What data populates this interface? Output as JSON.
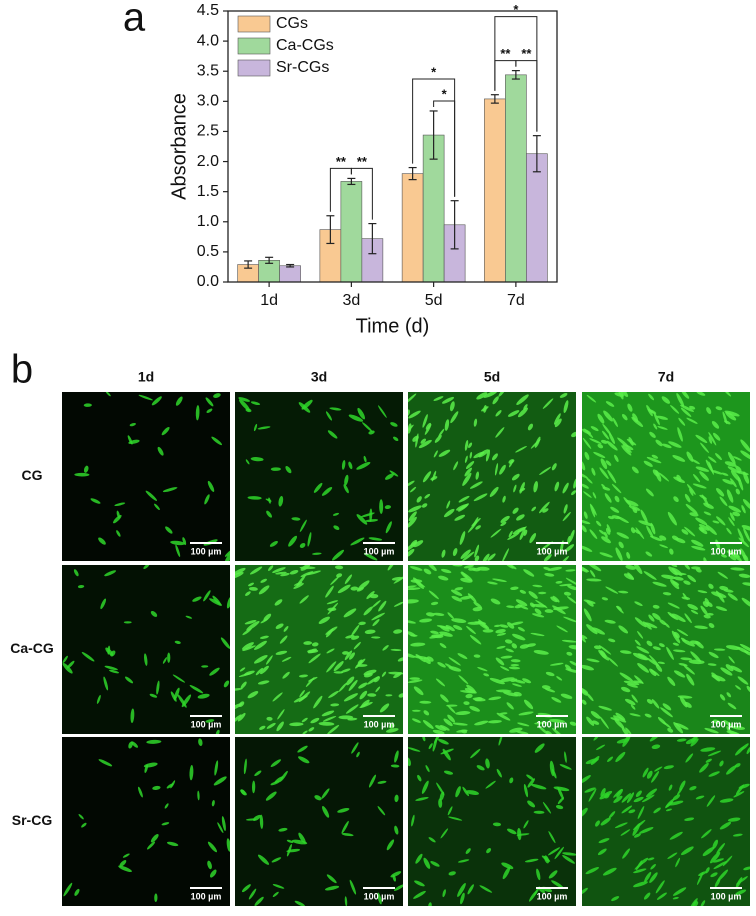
{
  "panel_a": "a",
  "panel_b": "b",
  "chart_data": {
    "type": "bar",
    "x_label": "Time (d)",
    "y_label": "Absorbance",
    "categories": [
      "1d",
      "3d",
      "5d",
      "7d"
    ],
    "series": [
      {
        "name": "CGs",
        "color": "#f9c992",
        "values": [
          0.29,
          0.87,
          1.8,
          3.04
        ],
        "errors": [
          0.06,
          0.23,
          0.1,
          0.07
        ]
      },
      {
        "name": "Ca-CGs",
        "color": "#a0d99c",
        "values": [
          0.36,
          1.67,
          2.44,
          3.44
        ],
        "errors": [
          0.05,
          0.05,
          0.4,
          0.07
        ]
      },
      {
        "name": "Sr-CGs",
        "color": "#c8b6dc",
        "values": [
          0.27,
          0.72,
          0.95,
          2.13
        ],
        "errors": [
          0.02,
          0.25,
          0.4,
          0.3
        ]
      }
    ],
    "ylim": [
      0,
      4.5
    ],
    "yticks": [
      {
        "value": 0,
        "label": "0.0"
      },
      0.5,
      {
        "value": 1,
        "label": "1.0"
      },
      1.5,
      {
        "value": 2,
        "label": "2.0"
      },
      2.5,
      {
        "value": 3,
        "label": "3.0"
      },
      3.5,
      {
        "value": 4,
        "label": "4.0"
      },
      4.5
    ],
    "legend": "upper left",
    "annotations": [
      {
        "text": "**",
        "category": 1,
        "from": 0,
        "to": 1
      },
      {
        "text": "**",
        "category": 1,
        "from": 1,
        "to": 2
      },
      {
        "text": "*",
        "category": 2,
        "from": 1,
        "to": 2
      },
      {
        "text": "*",
        "category": 2,
        "from": 0,
        "to": 2
      },
      {
        "text": "**",
        "category": 3,
        "from": 0,
        "to": 1
      },
      {
        "text": "**",
        "category": 3,
        "from": 1,
        "to": 2
      },
      {
        "text": "*",
        "category": 3,
        "from": 0,
        "to": 2
      }
    ]
  },
  "micrographs": {
    "columns": [
      "1d",
      "3d",
      "5d",
      "7d"
    ],
    "rows": [
      "CG",
      "Ca-CG",
      "Sr-CG"
    ],
    "scale_bar": "100 µm"
  }
}
